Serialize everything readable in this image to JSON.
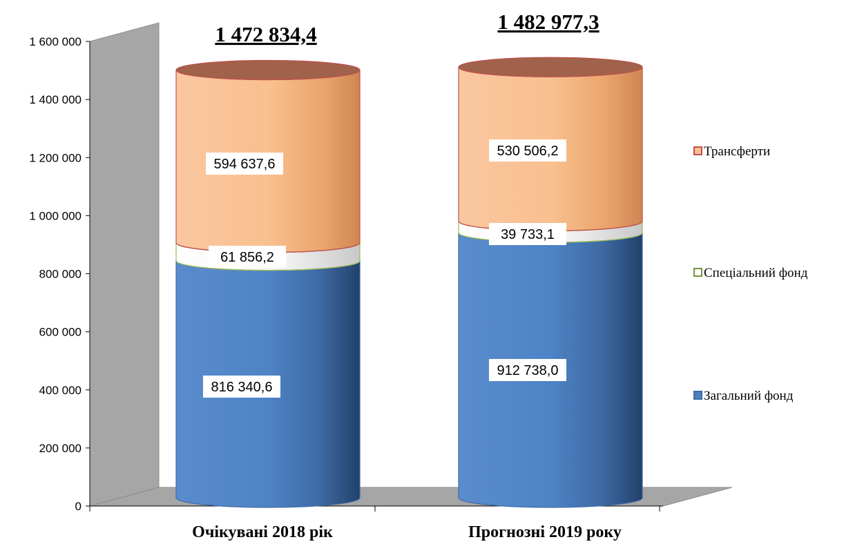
{
  "chart_data": {
    "type": "bar",
    "subtype": "stacked-cylinder-3d",
    "categories": [
      "Очікувані  2018 рік",
      "Прогнозні 2019 року"
    ],
    "series": [
      {
        "name": "Загальний  фонд",
        "values": [
          816340.6,
          912738.0
        ],
        "labels": [
          "816 340,6",
          "912 738,0"
        ],
        "color": "#4f81bd"
      },
      {
        "name": "Спеціальний  фонд",
        "values": [
          61856.2,
          39733.1
        ],
        "labels": [
          "61 856,2",
          "39 733,1"
        ],
        "color": "#ffffff",
        "border_color": "#77933c"
      },
      {
        "name": "Трансферти",
        "values": [
          594637.6,
          530506.2
        ],
        "labels": [
          "594 637,6",
          "530 506,2"
        ],
        "color": "#fac090",
        "border_color": "#c0504d"
      }
    ],
    "totals": [
      "1 472 834,4",
      "1 482 977,3"
    ],
    "total_values": [
      1472834.4,
      1482977.3
    ],
    "ylim": [
      0,
      1600000
    ],
    "yticks": [
      0,
      200000,
      400000,
      600000,
      800000,
      1000000,
      1200000,
      1400000,
      1600000
    ],
    "ytick_labels": [
      "0",
      "200 000",
      "400 000",
      "600 000",
      "800 000",
      "1 000 000",
      "1 200 000",
      "1 400 000",
      "1 600 000"
    ],
    "legend_position": "right",
    "legend_order": [
      2,
      1,
      0
    ],
    "grid": false,
    "wall_color": "#a6a6a6"
  }
}
